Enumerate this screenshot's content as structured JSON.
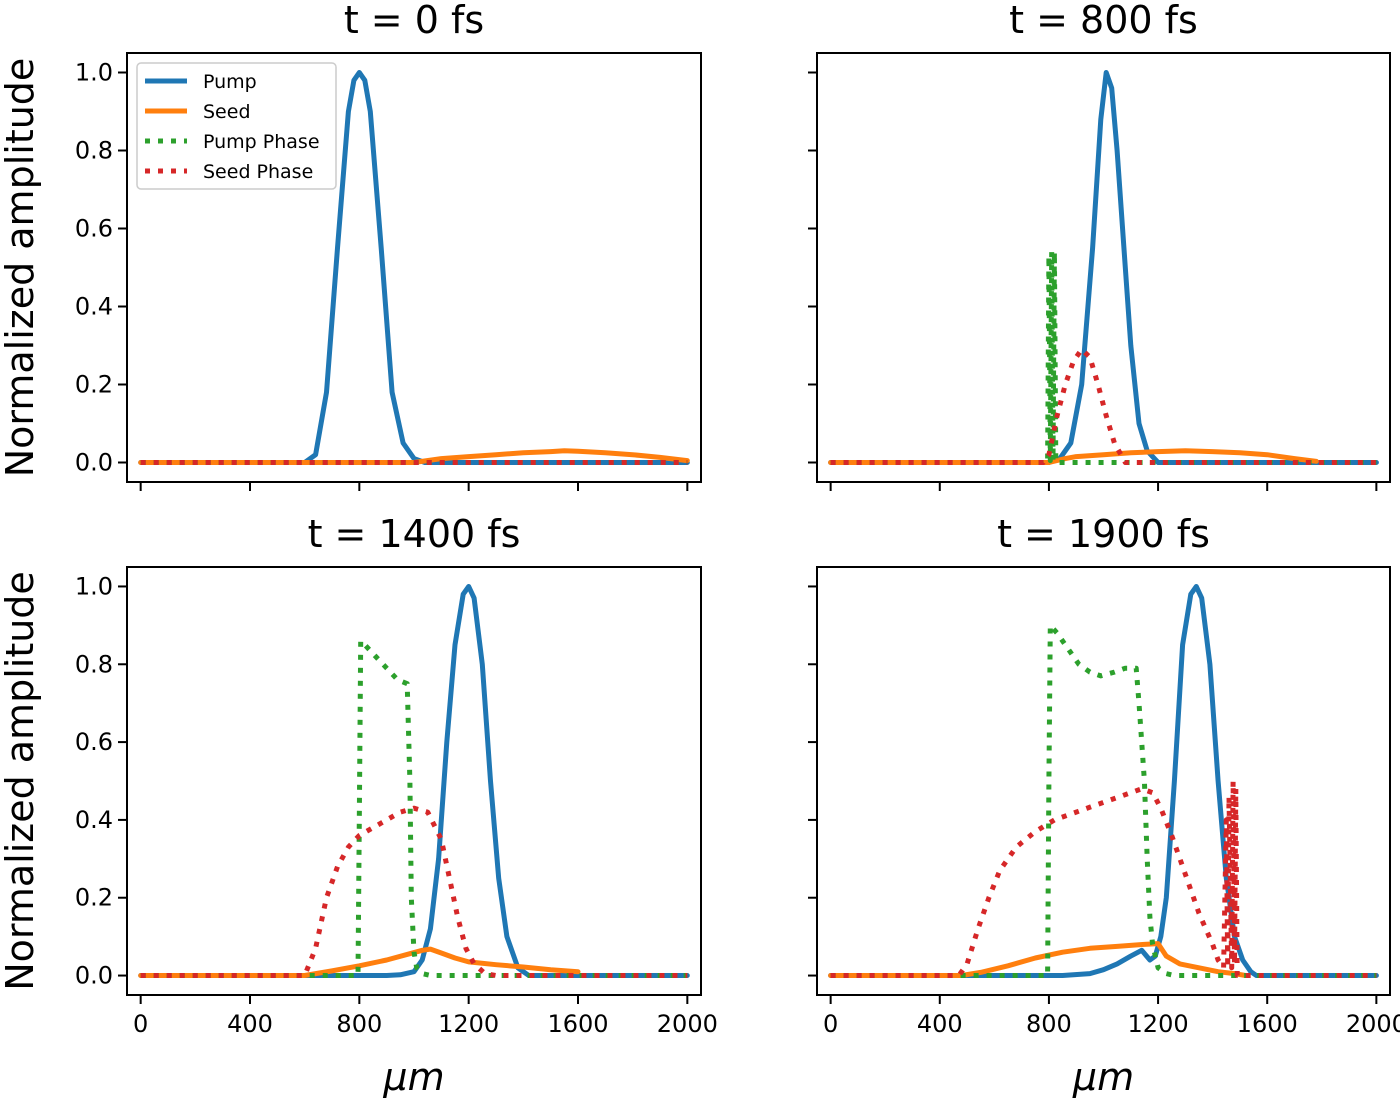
{
  "chart_data": {
    "type": "line",
    "layout": "2x2 subplots, shared x and y axes",
    "ylabel": "Normalized amplitude",
    "xlabel": "μm",
    "xlim": [
      -50,
      2050
    ],
    "ylim": [
      -0.05,
      1.05
    ],
    "xticks": [
      0,
      400,
      800,
      1200,
      1600,
      2000
    ],
    "yticks": [
      0.0,
      0.2,
      0.4,
      0.6,
      0.8,
      1.0
    ],
    "ytick_labels": [
      "0.0",
      "0.2",
      "0.4",
      "0.6",
      "0.8",
      "1.0"
    ],
    "grid": false,
    "legend": {
      "placement": "top-left",
      "panel": 0,
      "entries": [
        {
          "name": "Pump",
          "style": "solid",
          "color": "#1f77b4"
        },
        {
          "name": "Seed",
          "style": "solid",
          "color": "#ff7f0e"
        },
        {
          "name": "Pump Phase",
          "style": "dotted",
          "color": "#2ca02c"
        },
        {
          "name": "Seed Phase",
          "style": "dotted",
          "color": "#d62728"
        }
      ]
    },
    "panels": [
      {
        "title": "t = 0 fs",
        "series": [
          {
            "name": "Pump",
            "color": "#1f77b4",
            "style": "solid",
            "x": [
              0,
              600,
              640,
              680,
              720,
              760,
              780,
              800,
              820,
              840,
              880,
              920,
              960,
              1000,
              1040,
              1200,
              1600,
              2000
            ],
            "y": [
              0,
              0,
              0.02,
              0.18,
              0.55,
              0.9,
              0.98,
              1.0,
              0.98,
              0.9,
              0.55,
              0.18,
              0.05,
              0.01,
              0,
              0,
              0,
              0
            ]
          },
          {
            "name": "Seed",
            "color": "#ff7f0e",
            "style": "solid",
            "x": [
              0,
              1000,
              1100,
              1200,
              1300,
              1400,
              1500,
              1550,
              1600,
              1700,
              1800,
              1900,
              2000
            ],
            "y": [
              0,
              0,
              0.01,
              0.015,
              0.02,
              0.025,
              0.028,
              0.03,
              0.029,
              0.025,
              0.02,
              0.013,
              0.005
            ]
          },
          {
            "name": "Pump Phase",
            "color": "#2ca02c",
            "style": "dotted",
            "x": [
              0,
              2000
            ],
            "y": [
              0,
              0
            ]
          },
          {
            "name": "Seed Phase",
            "color": "#d62728",
            "style": "dotted",
            "x": [
              0,
              2000
            ],
            "y": [
              0,
              0
            ]
          }
        ]
      },
      {
        "title": "t = 800 fs",
        "series": [
          {
            "name": "Pump",
            "color": "#1f77b4",
            "style": "solid",
            "x": [
              0,
              800,
              820,
              840,
              880,
              920,
              960,
              990,
              1010,
              1030,
              1050,
              1080,
              1100,
              1130,
              1160,
              1200,
              1300,
              2000
            ],
            "y": [
              0,
              0,
              0.005,
              0.01,
              0.05,
              0.2,
              0.55,
              0.88,
              1.0,
              0.96,
              0.8,
              0.5,
              0.3,
              0.1,
              0.03,
              0,
              0,
              0
            ]
          },
          {
            "name": "Seed",
            "color": "#ff7f0e",
            "style": "solid",
            "x": [
              0,
              800,
              860,
              900,
              1000,
              1100,
              1200,
              1300,
              1400,
              1500,
              1600,
              1700,
              1780
            ],
            "y": [
              0,
              0,
              0.01,
              0.015,
              0.02,
              0.025,
              0.028,
              0.03,
              0.028,
              0.025,
              0.02,
              0.01,
              0.003
            ]
          },
          {
            "name": "Pump Phase",
            "color": "#2ca02c",
            "style": "dotted",
            "x": [
              0,
              795,
              800,
              805,
              810,
              815,
              820,
              825,
              2000
            ],
            "y": [
              0,
              0,
              0.53,
              0.005,
              0.54,
              0.005,
              0.54,
              0,
              0
            ]
          },
          {
            "name": "Seed Phase",
            "color": "#d62728",
            "style": "dotted",
            "x": [
              0,
              780,
              800,
              830,
              860,
              890,
              920,
              950,
              980,
              1010,
              1040,
              1080,
              1200,
              2000
            ],
            "y": [
              0,
              0,
              0.02,
              0.12,
              0.2,
              0.26,
              0.29,
              0.27,
              0.2,
              0.12,
              0.05,
              0,
              0,
              0
            ]
          }
        ]
      },
      {
        "title": "t = 1400 fs",
        "series": [
          {
            "name": "Pump",
            "color": "#1f77b4",
            "style": "solid",
            "x": [
              0,
              900,
              950,
              1000,
              1030,
              1060,
              1090,
              1120,
              1150,
              1180,
              1200,
              1220,
              1250,
              1280,
              1310,
              1340,
              1380,
              1420,
              2000
            ],
            "y": [
              0,
              0,
              0.002,
              0.01,
              0.04,
              0.12,
              0.3,
              0.6,
              0.85,
              0.98,
              1.0,
              0.97,
              0.8,
              0.5,
              0.25,
              0.1,
              0.02,
              0,
              0
            ]
          },
          {
            "name": "Seed",
            "color": "#ff7f0e",
            "style": "solid",
            "x": [
              0,
              600,
              700,
              800,
              900,
              980,
              1030,
              1060,
              1100,
              1150,
              1200,
              1300,
              1400,
              1500,
              1600
            ],
            "y": [
              0,
              0,
              0.012,
              0.025,
              0.04,
              0.055,
              0.065,
              0.068,
              0.058,
              0.045,
              0.035,
              0.028,
              0.022,
              0.015,
              0.01
            ]
          },
          {
            "name": "Pump Phase",
            "color": "#2ca02c",
            "style": "dotted",
            "x": [
              0,
              795,
              800,
              805,
              820,
              860,
              900,
              940,
              975,
              985,
              990,
              1000,
              1010,
              1030,
              1060,
              1100,
              2000
            ],
            "y": [
              0,
              0,
              0.4,
              0.86,
              0.85,
              0.82,
              0.79,
              0.76,
              0.75,
              0.5,
              0.2,
              0.06,
              0.02,
              0.005,
              0,
              0,
              0
            ]
          },
          {
            "name": "Seed Phase",
            "color": "#d62728",
            "style": "dotted",
            "x": [
              0,
              600,
              640,
              680,
              720,
              760,
              800,
              850,
              900,
              950,
              1000,
              1050,
              1100,
              1130,
              1160,
              1190,
              1220,
              1260,
              1300,
              2000
            ],
            "y": [
              0,
              0,
              0.07,
              0.2,
              0.28,
              0.33,
              0.36,
              0.38,
              0.4,
              0.42,
              0.43,
              0.42,
              0.35,
              0.25,
              0.15,
              0.07,
              0.03,
              0.005,
              0,
              0
            ]
          }
        ]
      },
      {
        "title": "t = 1900 fs",
        "series": [
          {
            "name": "Pump",
            "color": "#1f77b4",
            "style": "solid",
            "x": [
              0,
              850,
              950,
              1000,
              1050,
              1100,
              1140,
              1170,
              1190,
              1210,
              1230,
              1260,
              1290,
              1320,
              1340,
              1360,
              1390,
              1420,
              1450,
              1480,
              1510,
              1540,
              1560,
              2000
            ],
            "y": [
              0,
              0,
              0.005,
              0.015,
              0.03,
              0.05,
              0.065,
              0.04,
              0.05,
              0.1,
              0.2,
              0.5,
              0.85,
              0.98,
              1.0,
              0.97,
              0.8,
              0.5,
              0.25,
              0.1,
              0.04,
              0.01,
              0,
              0
            ]
          },
          {
            "name": "Seed",
            "color": "#ff7f0e",
            "style": "solid",
            "x": [
              0,
              480,
              550,
              650,
              750,
              850,
              950,
              1050,
              1150,
              1200,
              1230,
              1280,
              1350,
              1420,
              1480,
              1520
            ],
            "y": [
              0,
              0,
              0.008,
              0.025,
              0.045,
              0.06,
              0.07,
              0.075,
              0.08,
              0.082,
              0.05,
              0.03,
              0.02,
              0.01,
              0.005,
              0
            ]
          },
          {
            "name": "Pump Phase",
            "color": "#2ca02c",
            "style": "dotted",
            "x": [
              0,
              795,
              800,
              805,
              830,
              870,
              910,
              950,
              990,
              1040,
              1080,
              1120,
              1130,
              1150,
              1160,
              1170,
              1180,
              1200,
              1230,
              1260,
              2000
            ],
            "y": [
              0,
              0,
              0.5,
              0.9,
              0.88,
              0.84,
              0.8,
              0.78,
              0.77,
              0.78,
              0.79,
              0.79,
              0.7,
              0.5,
              0.3,
              0.15,
              0.08,
              0.02,
              0.005,
              0,
              0
            ]
          },
          {
            "name": "Seed Phase",
            "color": "#d62728",
            "style": "dotted",
            "x": [
              0,
              470,
              500,
              540,
              580,
              620,
              680,
              750,
              820,
              900,
              980,
              1060,
              1140,
              1180,
              1210,
              1250,
              1300,
              1350,
              1400,
              1420,
              1440,
              1450,
              1455,
              1460,
              1470,
              1475,
              1480,
              1485,
              1490,
              2000
            ],
            "y": [
              0,
              0,
              0.03,
              0.12,
              0.2,
              0.27,
              0.33,
              0.37,
              0.4,
              0.42,
              0.44,
              0.46,
              0.48,
              0.47,
              0.43,
              0.36,
              0.26,
              0.16,
              0.08,
              0.04,
              0.02,
              0.4,
              0.02,
              0.46,
              0.02,
              0.5,
              0.03,
              0.48,
              0,
              0
            ]
          }
        ]
      }
    ]
  }
}
